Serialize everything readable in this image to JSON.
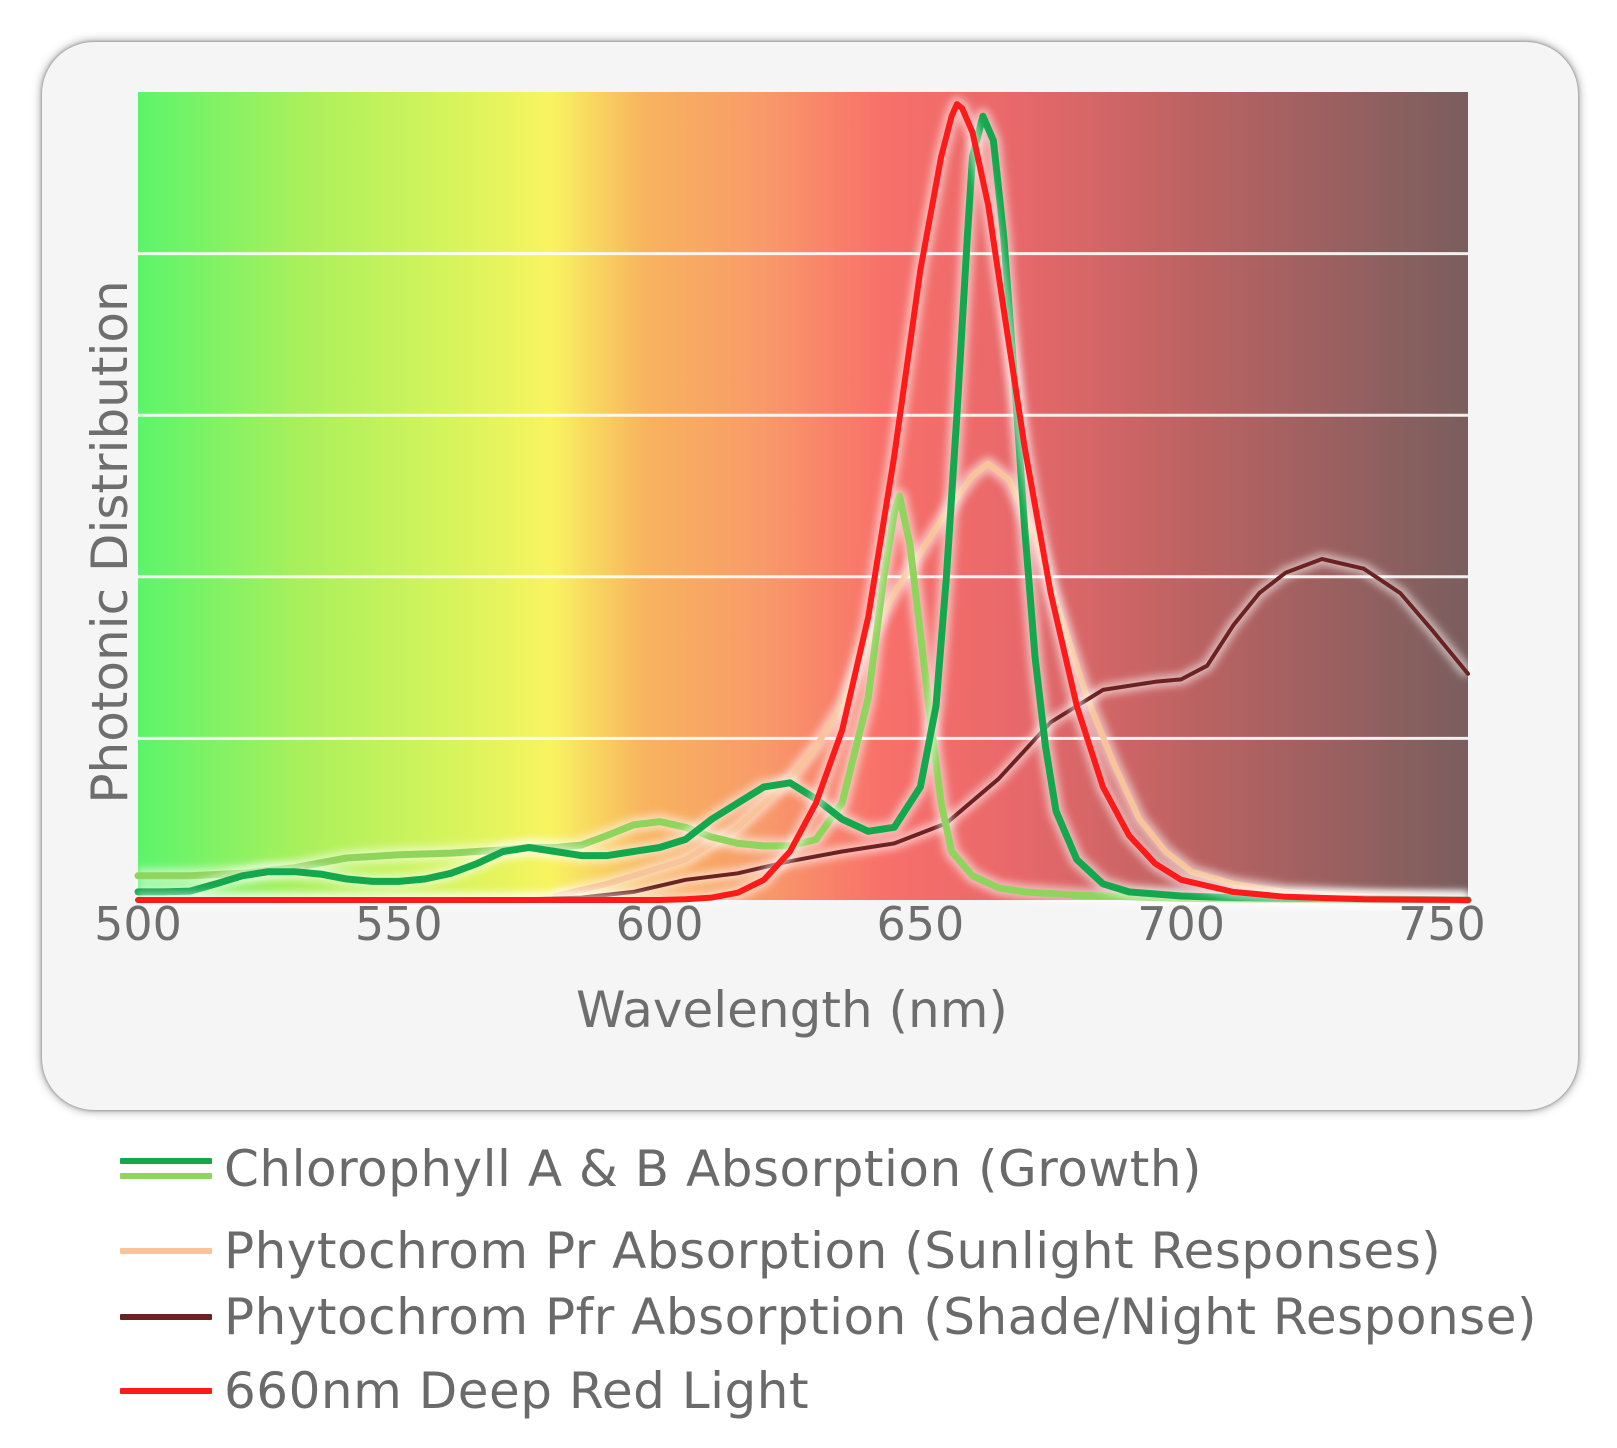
{
  "chart_data": {
    "type": "line",
    "title": "",
    "xlabel": "Wavelength (nm)",
    "ylabel": "Photonic Distribution",
    "xlim": [
      500,
      755
    ],
    "ylim": [
      0,
      100
    ],
    "x_ticks": [
      "500",
      "550",
      "600",
      "650",
      "700",
      "750"
    ],
    "grid": true,
    "legend_position": "bottom",
    "background": "visible-spectrum gradient (green to yellow to red to dark brown)",
    "series": [
      {
        "name": "Chlorophyll A & B Absorption (Growth)",
        "component": "Chlorophyll A (dark green)",
        "color": "#14a84e",
        "points": [
          [
            500,
            1
          ],
          [
            505,
            1
          ],
          [
            510,
            1.1
          ],
          [
            515,
            2
          ],
          [
            520,
            3
          ],
          [
            525,
            3.5
          ],
          [
            530,
            3.5
          ],
          [
            535,
            3.2
          ],
          [
            540,
            2.6
          ],
          [
            545,
            2.3
          ],
          [
            550,
            2.3
          ],
          [
            555,
            2.6
          ],
          [
            560,
            3.3
          ],
          [
            565,
            4.5
          ],
          [
            570,
            6
          ],
          [
            575,
            6.5
          ],
          [
            580,
            6
          ],
          [
            585,
            5.5
          ],
          [
            590,
            5.5
          ],
          [
            595,
            6
          ],
          [
            600,
            6.5
          ],
          [
            605,
            7.5
          ],
          [
            610,
            10
          ],
          [
            615,
            12
          ],
          [
            620,
            14
          ],
          [
            625,
            14.5
          ],
          [
            630,
            12.5
          ],
          [
            635,
            10
          ],
          [
            640,
            8.5
          ],
          [
            645,
            9
          ],
          [
            650,
            14
          ],
          [
            653,
            24
          ],
          [
            655,
            40
          ],
          [
            657,
            60
          ],
          [
            659,
            82
          ],
          [
            660,
            92
          ],
          [
            662,
            97
          ],
          [
            664,
            94
          ],
          [
            666,
            82
          ],
          [
            668,
            65
          ],
          [
            670,
            46
          ],
          [
            672,
            30
          ],
          [
            674,
            19
          ],
          [
            676,
            11
          ],
          [
            680,
            5
          ],
          [
            685,
            2
          ],
          [
            690,
            1
          ],
          [
            700,
            0.5
          ],
          [
            710,
            0.3
          ],
          [
            720,
            0.2
          ],
          [
            740,
            0.1
          ],
          [
            755,
            0
          ]
        ]
      },
      {
        "name": "Chlorophyll A & B Absorption (Growth)",
        "component": "Chlorophyll B (light green)",
        "color": "#8fd45c",
        "points": [
          [
            500,
            3
          ],
          [
            510,
            3
          ],
          [
            520,
            3.3
          ],
          [
            530,
            4
          ],
          [
            540,
            5.2
          ],
          [
            550,
            5.6
          ],
          [
            560,
            5.8
          ],
          [
            570,
            6.2
          ],
          [
            575,
            6.5
          ],
          [
            580,
            6.5
          ],
          [
            585,
            6.8
          ],
          [
            590,
            8
          ],
          [
            595,
            9.3
          ],
          [
            600,
            9.7
          ],
          [
            605,
            9
          ],
          [
            610,
            7.8
          ],
          [
            615,
            7
          ],
          [
            620,
            6.7
          ],
          [
            625,
            6.7
          ],
          [
            630,
            7.5
          ],
          [
            635,
            12
          ],
          [
            640,
            25
          ],
          [
            643,
            40
          ],
          [
            645,
            48
          ],
          [
            646,
            50
          ],
          [
            648,
            44
          ],
          [
            650,
            33
          ],
          [
            652,
            22
          ],
          [
            654,
            12
          ],
          [
            656,
            6
          ],
          [
            660,
            3
          ],
          [
            665,
            1.5
          ],
          [
            670,
            1
          ],
          [
            680,
            0.6
          ],
          [
            690,
            0.4
          ],
          [
            700,
            0.2
          ],
          [
            730,
            0
          ],
          [
            755,
            0
          ]
        ]
      },
      {
        "name": "Phytochrom Pr Absorption (Sunlight Responses)",
        "color": "#f8c59a",
        "points": [
          [
            580,
            0.5
          ],
          [
            590,
            2
          ],
          [
            595,
            3
          ],
          [
            600,
            4
          ],
          [
            605,
            5
          ],
          [
            610,
            7
          ],
          [
            615,
            9
          ],
          [
            620,
            12
          ],
          [
            625,
            15
          ],
          [
            630,
            19
          ],
          [
            635,
            24
          ],
          [
            640,
            32
          ],
          [
            645,
            38
          ],
          [
            650,
            43
          ],
          [
            655,
            48
          ],
          [
            660,
            52.5
          ],
          [
            663,
            54
          ],
          [
            667,
            52
          ],
          [
            672,
            45
          ],
          [
            677,
            35
          ],
          [
            682,
            25
          ],
          [
            687,
            17
          ],
          [
            692,
            10
          ],
          [
            697,
            6
          ],
          [
            702,
            3.5
          ],
          [
            710,
            2
          ],
          [
            720,
            1
          ],
          [
            740,
            0.2
          ],
          [
            755,
            0
          ]
        ]
      },
      {
        "name": "Phytochrom Pfr Absorption (Shade/Night Response)",
        "color": "#6b2222",
        "points": [
          [
            500,
            0
          ],
          [
            570,
            0
          ],
          [
            585,
            0.3
          ],
          [
            595,
            1
          ],
          [
            605,
            2.5
          ],
          [
            615,
            3.3
          ],
          [
            625,
            4.8
          ],
          [
            635,
            6
          ],
          [
            645,
            7
          ],
          [
            655,
            9.5
          ],
          [
            665,
            15
          ],
          [
            675,
            22
          ],
          [
            685,
            26
          ],
          [
            695,
            27
          ],
          [
            700,
            27.3
          ],
          [
            705,
            29
          ],
          [
            710,
            34
          ],
          [
            715,
            38
          ],
          [
            720,
            40.5
          ],
          [
            727,
            42.2
          ],
          [
            735,
            41
          ],
          [
            742,
            38
          ],
          [
            748,
            33.5
          ],
          [
            755,
            28
          ]
        ]
      },
      {
        "name": "660nm Deep Red Light",
        "color": "#ff1a1a",
        "points": [
          [
            500,
            0
          ],
          [
            580,
            0
          ],
          [
            600,
            0
          ],
          [
            605,
            0.1
          ],
          [
            610,
            0.3
          ],
          [
            615,
            0.9
          ],
          [
            620,
            2.5
          ],
          [
            625,
            6
          ],
          [
            630,
            12
          ],
          [
            635,
            21
          ],
          [
            640,
            35
          ],
          [
            645,
            55
          ],
          [
            650,
            78
          ],
          [
            654,
            92
          ],
          [
            656,
            97
          ],
          [
            657,
            98.5
          ],
          [
            658,
            98
          ],
          [
            660,
            95
          ],
          [
            663,
            86
          ],
          [
            666,
            73
          ],
          [
            670,
            56
          ],
          [
            675,
            38
          ],
          [
            680,
            24
          ],
          [
            685,
            14
          ],
          [
            690,
            8
          ],
          [
            695,
            4.5
          ],
          [
            700,
            2.5
          ],
          [
            710,
            1
          ],
          [
            720,
            0.4
          ],
          [
            735,
            0.1
          ],
          [
            755,
            0
          ]
        ]
      }
    ]
  },
  "legend": {
    "items": [
      {
        "label": "Chlorophyll A & B Absorption (Growth)",
        "colors": [
          "#14a84e",
          "#8fd45c"
        ]
      },
      {
        "label": "Phytochrom Pr Absorption (Sunlight Responses)",
        "colors": [
          "#f8c59a"
        ]
      },
      {
        "label": "Phytochrom Pfr Absorption (Shade/Night Response)",
        "colors": [
          "#6b2222"
        ]
      },
      {
        "label": "660nm Deep Red Light",
        "colors": [
          "#ff1a1a"
        ]
      }
    ]
  }
}
